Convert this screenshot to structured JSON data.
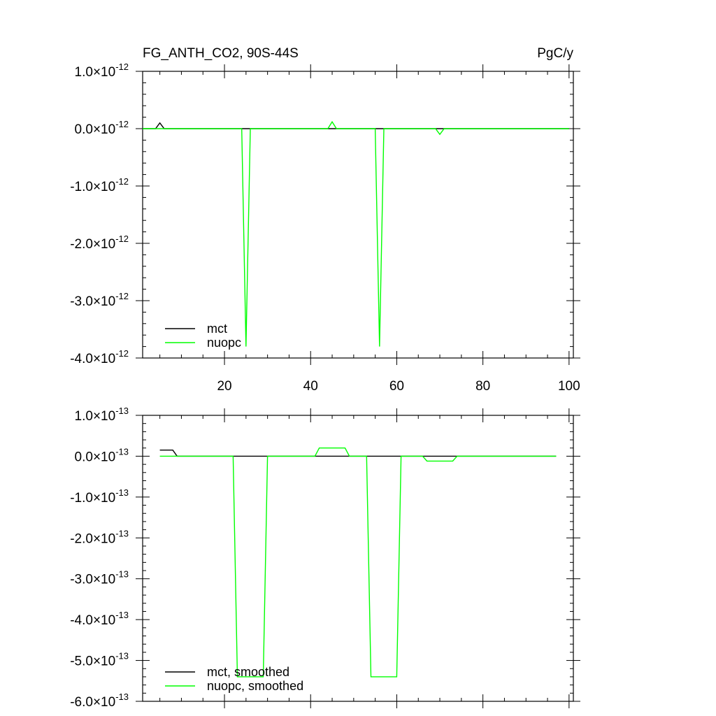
{
  "figure": {
    "title": "FG_ANTH_CO2, 90S-44S",
    "units": "PgC/y"
  },
  "colors": {
    "mct": "#000000",
    "nuopc": "#00ff00",
    "axis": "#000000",
    "background": "#ffffff"
  },
  "chart_data": [
    {
      "type": "line",
      "panel": "raw",
      "xlim": [
        1,
        101
      ],
      "ylim": [
        -4e-12,
        1e-12
      ],
      "x_ticks": [
        20,
        40,
        60,
        80,
        100
      ],
      "x_tick_labels": [
        "20",
        "40",
        "60",
        "80",
        "100"
      ],
      "y_ticks": [
        1e-12,
        0,
        -1e-12,
        -2e-12,
        -3e-12,
        -4e-12
      ],
      "y_tick_labels": [
        {
          "mantissa": "1.0",
          "exponent": "-12"
        },
        {
          "mantissa": "0.0",
          "exponent": "-12"
        },
        {
          "mantissa": "-1.0",
          "exponent": "-12"
        },
        {
          "mantissa": "-2.0",
          "exponent": "-12"
        },
        {
          "mantissa": "-3.0",
          "exponent": "-12"
        },
        {
          "mantissa": "-4.0",
          "exponent": "-12"
        }
      ],
      "legend": "bottom-left",
      "series": [
        {
          "name": "mct",
          "color": "#000000",
          "points": [
            [
              1,
              0
            ],
            [
              4,
              0
            ],
            [
              5,
              1e-13
            ],
            [
              6,
              0
            ],
            [
              100,
              0
            ]
          ]
        },
        {
          "name": "nuopc",
          "color": "#00ff00",
          "points": [
            [
              1,
              0
            ],
            [
              24,
              0
            ],
            [
              25,
              -3.8e-12
            ],
            [
              26,
              0
            ],
            [
              44,
              0
            ],
            [
              45,
              1.2e-13
            ],
            [
              46,
              0
            ],
            [
              55,
              0
            ],
            [
              56,
              -3.8e-12
            ],
            [
              57,
              0
            ],
            [
              69,
              0
            ],
            [
              70,
              -1e-13
            ],
            [
              71,
              0
            ],
            [
              100,
              0
            ]
          ]
        }
      ]
    },
    {
      "type": "line",
      "panel": "smoothed",
      "xlim": [
        1,
        101
      ],
      "ylim": [
        -6e-13,
        1e-13
      ],
      "y_ticks": [
        1e-13,
        0,
        -1e-13,
        -2e-13,
        -3e-13,
        -4e-13,
        -5e-13,
        -6e-13
      ],
      "y_tick_labels": [
        {
          "mantissa": "1.0",
          "exponent": "-13"
        },
        {
          "mantissa": "0.0",
          "exponent": "-13"
        },
        {
          "mantissa": "-1.0",
          "exponent": "-13"
        },
        {
          "mantissa": "-2.0",
          "exponent": "-13"
        },
        {
          "mantissa": "-3.0",
          "exponent": "-13"
        },
        {
          "mantissa": "-4.0",
          "exponent": "-13"
        },
        {
          "mantissa": "-5.0",
          "exponent": "-13"
        },
        {
          "mantissa": "-6.0",
          "exponent": "-13"
        }
      ],
      "legend": "bottom-left",
      "series": [
        {
          "name": "mct, smoothed",
          "color": "#000000",
          "points": [
            [
              5,
              1.5e-14
            ],
            [
              8,
              1.5e-14
            ],
            [
              9,
              0
            ],
            [
              97,
              0
            ]
          ]
        },
        {
          "name": "nuopc, smoothed",
          "color": "#00ff00",
          "points": [
            [
              5,
              0
            ],
            [
              22,
              0
            ],
            [
              23,
              -5.4e-13
            ],
            [
              29,
              -5.4e-13
            ],
            [
              30,
              0
            ],
            [
              41,
              0
            ],
            [
              42,
              2e-14
            ],
            [
              48,
              2e-14
            ],
            [
              49,
              0
            ],
            [
              53,
              0
            ],
            [
              54,
              -5.4e-13
            ],
            [
              60,
              -5.4e-13
            ],
            [
              61,
              0
            ],
            [
              66,
              0
            ],
            [
              67,
              -1.2e-14
            ],
            [
              73,
              -1.2e-14
            ],
            [
              74,
              0
            ],
            [
              97,
              0
            ]
          ]
        }
      ]
    }
  ]
}
